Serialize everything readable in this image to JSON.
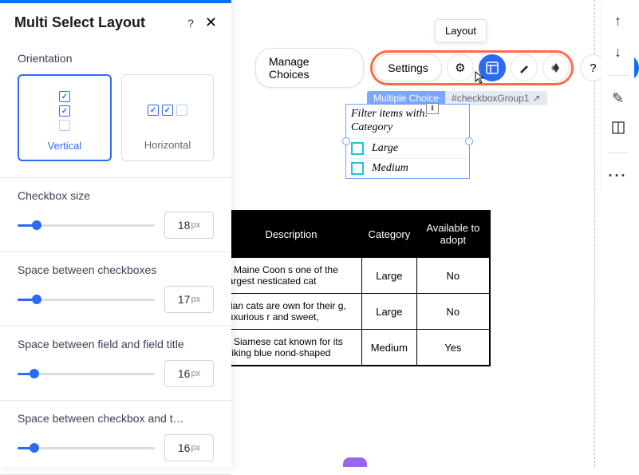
{
  "panel": {
    "title": "Multi Select Layout",
    "orientation_label": "Orientation",
    "vertical_label": "Vertical",
    "horizontal_label": "Horizontal",
    "sliders": [
      {
        "label": "Checkbox size",
        "value": "18",
        "unit": "px",
        "pct": 14
      },
      {
        "label": "Space between checkboxes",
        "value": "17",
        "unit": "px",
        "pct": 14
      },
      {
        "label": "Space between field and field title",
        "value": "16",
        "unit": "px",
        "pct": 12
      },
      {
        "label": "Space between checkbox and t…",
        "value": "16",
        "unit": "px",
        "pct": 12
      }
    ]
  },
  "tooltip": "Layout",
  "toolbar": {
    "manage": "Manage Choices",
    "settings": "Settings"
  },
  "elem": {
    "left": "Multiple Choice",
    "right": "#checkboxGroup1"
  },
  "widget": {
    "title": "Filter items with: Category",
    "items": [
      "Large",
      "Medium"
    ]
  },
  "table": {
    "headers": [
      "Description",
      "Category",
      "Available to adopt"
    ],
    "rows": [
      {
        "desc": "e Maine Coon s one of the largest nesticated cat",
        "cat": "Large",
        "avail": "No"
      },
      {
        "desc": "sian cats are own for their g, luxurious r and sweet,",
        "cat": "Large",
        "avail": "No"
      },
      {
        "desc": "e Siamese cat known for its triking blue nond-shaped",
        "cat": "Medium",
        "avail": "Yes"
      }
    ]
  }
}
